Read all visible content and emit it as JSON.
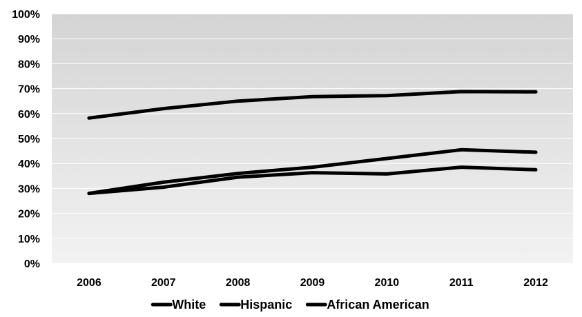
{
  "chart_data": {
    "type": "line",
    "title": "",
    "xlabel": "",
    "ylabel": "",
    "categories": [
      "2006",
      "2007",
      "2008",
      "2009",
      "2010",
      "2011",
      "2012"
    ],
    "ylim": [
      0,
      100
    ],
    "y_ticks": [
      "0%",
      "10%",
      "20%",
      "30%",
      "40%",
      "50%",
      "60%",
      "70%",
      "80%",
      "90%",
      "100%"
    ],
    "y_tick_values": [
      0,
      10,
      20,
      30,
      40,
      50,
      60,
      70,
      80,
      90,
      100
    ],
    "grid": true,
    "legend_position": "bottom",
    "series": [
      {
        "name": "White",
        "values": [
          58.2,
          62.0,
          65.0,
          66.8,
          67.2,
          68.8,
          68.7
        ]
      },
      {
        "name": "Hispanic",
        "values": [
          28.0,
          32.5,
          36.0,
          38.5,
          42.0,
          45.5,
          44.5
        ]
      },
      {
        "name": "African American",
        "values": [
          28.0,
          30.5,
          34.5,
          36.3,
          35.8,
          38.5,
          37.5
        ]
      }
    ],
    "colors": {
      "plot_bg_top": "#d4d4d4",
      "plot_bg_bottom": "#f2f2f2",
      "gridline": "#ffffff",
      "line": "#000000"
    }
  }
}
